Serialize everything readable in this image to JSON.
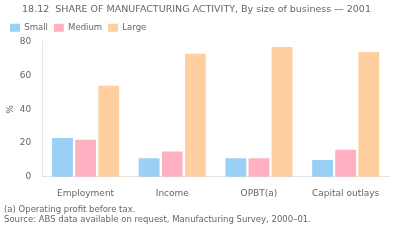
{
  "chart_data": {
    "type": "bar",
    "title": "18.12  SHARE OF MANUFACTURING ACTIVITY, By size of business — 2001",
    "ylabel": "%",
    "categories": [
      "Employment",
      "Income",
      "OPBT(a)",
      "Capital outlays"
    ],
    "series": [
      {
        "name": "Small",
        "values": [
          23,
          11,
          11,
          10
        ]
      },
      {
        "name": "Medium",
        "values": [
          22,
          15,
          11,
          16
        ]
      },
      {
        "name": "Large",
        "values": [
          54,
          73,
          77,
          74
        ]
      }
    ],
    "ylim": [
      0,
      80
    ],
    "yticks": [
      0,
      20,
      40,
      60,
      80
    ],
    "grid": false,
    "legend": "upper left",
    "annotations": [
      "(a) Operating profit before tax.",
      "Source: ABS data available on request, Manufacturing Survey, 2000–01."
    ]
  }
}
